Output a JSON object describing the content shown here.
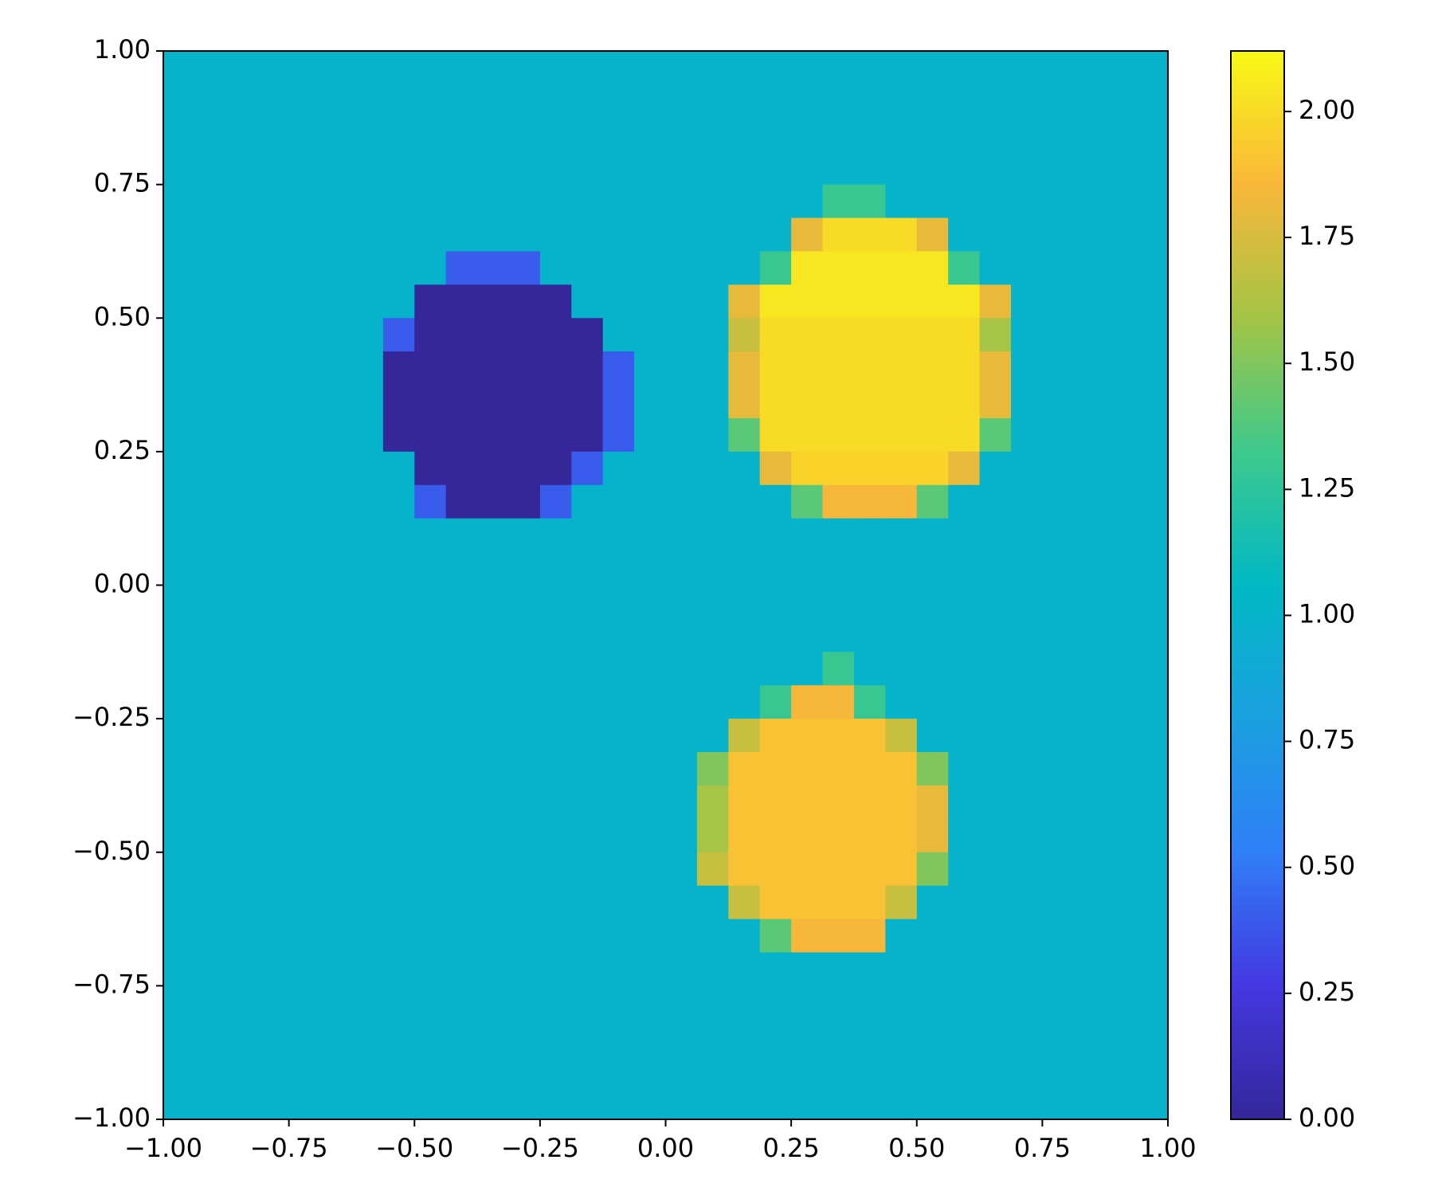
{
  "chart_data": {
    "type": "heatmap",
    "xlim": [
      -1,
      1
    ],
    "ylim": [
      -1,
      1
    ],
    "xticks": [
      {
        "value": -1,
        "label": "−1.00"
      },
      {
        "value": -0.75,
        "label": "−0.75"
      },
      {
        "value": -0.5,
        "label": "−0.50"
      },
      {
        "value": -0.25,
        "label": "−0.25"
      },
      {
        "value": 0,
        "label": "0.00"
      },
      0.25,
      {
        "value": 0.5,
        "label": "0.50"
      },
      0.75,
      {
        "value": 1,
        "label": "1.00"
      }
    ],
    "yticks": [
      {
        "value": -1,
        "label": "−1.00"
      },
      {
        "value": -0.75,
        "label": "−0.75"
      },
      {
        "value": -0.5,
        "label": "−0.50"
      },
      {
        "value": -0.25,
        "label": "−0.25"
      },
      {
        "value": 0,
        "label": "0.00"
      },
      0.25,
      {
        "value": 0.5,
        "label": "0.50"
      },
      0.75,
      {
        "value": 1,
        "label": "1.00"
      }
    ],
    "zlim": [
      0,
      2.12
    ],
    "zticks": [
      {
        "value": 0,
        "label": "0.00"
      },
      0.25,
      {
        "value": 0.5,
        "label": "0.50"
      },
      0.75,
      {
        "value": 1,
        "label": "1.00"
      },
      1.25,
      {
        "value": 1.5,
        "label": "1.50"
      },
      1.75,
      {
        "value": 2,
        "label": "2.00"
      }
    ],
    "colormap": [
      "#35269a",
      "#4438e0",
      "#2f7ff7",
      "#1ba0e0",
      "#00b8c4",
      "#3ec98c",
      "#a3c445",
      "#f9b73a",
      "#f8f816"
    ],
    "values": [
      [
        1,
        1,
        1,
        1,
        1,
        1,
        1,
        1,
        1,
        1,
        1,
        1,
        1,
        1,
        1,
        1,
        1,
        1,
        1,
        1,
        1,
        1,
        1,
        1,
        1,
        1,
        1,
        1,
        1,
        1,
        1,
        1
      ],
      [
        1,
        1,
        1,
        1,
        1,
        1,
        1,
        1,
        1,
        1,
        1,
        1,
        1,
        1,
        1,
        1,
        1,
        1,
        1,
        1,
        1,
        1,
        1,
        1,
        1,
        1,
        1,
        1,
        1,
        1,
        1,
        1
      ],
      [
        1,
        1,
        1,
        1,
        1,
        1,
        1,
        1,
        1,
        1,
        1,
        1,
        1,
        1,
        1,
        1,
        1,
        1,
        1,
        1,
        1,
        1,
        1,
        1,
        1,
        1,
        1,
        1,
        1,
        1,
        1,
        1
      ],
      [
        1,
        1,
        1,
        1,
        1,
        1,
        1,
        1,
        1,
        1,
        1,
        1,
        1,
        1,
        1,
        1,
        1,
        1,
        1,
        1,
        1,
        1,
        1,
        1,
        1,
        1,
        1,
        1,
        1,
        1,
        1,
        1
      ],
      [
        1,
        1,
        1,
        1,
        1,
        1,
        1,
        1,
        1,
        1,
        1,
        1,
        1,
        1,
        1,
        1,
        1,
        1,
        1,
        1,
        1,
        1.3,
        1.3,
        1,
        1,
        1,
        1,
        1,
        1,
        1,
        1,
        1
      ],
      [
        1,
        1,
        1,
        1,
        1,
        1,
        1,
        1,
        1,
        1,
        1,
        1,
        1,
        1,
        1,
        1,
        1,
        1,
        1,
        1,
        1.8,
        2,
        2,
        2,
        1.8,
        1,
        1,
        1,
        1,
        1,
        1,
        1
      ],
      [
        1,
        1,
        1,
        1,
        1,
        1,
        1,
        1,
        1,
        0.4,
        0.4,
        0.4,
        1,
        1,
        1,
        1,
        1,
        1,
        1,
        1.3,
        2.05,
        2.05,
        2.05,
        2.05,
        2.05,
        1.3,
        1,
        1,
        1,
        1,
        1,
        1
      ],
      [
        1,
        1,
        1,
        1,
        1,
        1,
        1,
        1,
        0,
        0,
        0,
        0,
        0,
        1,
        1,
        1,
        1,
        1,
        1.8,
        2.05,
        2.05,
        2.05,
        2.05,
        2.05,
        2.05,
        2.05,
        1.8,
        1,
        1,
        1,
        1,
        1
      ],
      [
        1,
        1,
        1,
        1,
        1,
        1,
        1,
        0.4,
        0,
        0,
        0,
        0,
        0,
        0,
        1,
        1,
        1,
        1,
        1.7,
        2,
        2,
        2,
        2,
        2,
        2,
        2,
        1.6,
        1,
        1,
        1,
        1,
        1
      ],
      [
        1,
        1,
        1,
        1,
        1,
        1,
        1,
        0,
        0,
        0,
        0,
        0,
        0,
        0,
        0.4,
        1,
        1,
        1,
        1.8,
        2,
        2,
        2,
        2,
        2,
        2,
        2,
        1.8,
        1,
        1,
        1,
        1,
        1
      ],
      [
        1,
        1,
        1,
        1,
        1,
        1,
        1,
        0,
        0,
        0,
        0,
        0,
        0,
        0,
        0.4,
        1,
        1,
        1,
        1.8,
        2,
        2,
        2,
        2,
        2,
        2,
        2,
        1.8,
        1,
        1,
        1,
        1,
        1
      ],
      [
        1,
        1,
        1,
        1,
        1,
        1,
        1,
        0,
        0,
        0,
        0,
        0,
        0,
        0,
        0.4,
        1,
        1,
        1,
        1.4,
        2,
        2,
        2,
        2,
        2,
        2,
        2,
        1.4,
        1,
        1,
        1,
        1,
        1
      ],
      [
        1,
        1,
        1,
        1,
        1,
        1,
        1,
        1,
        0,
        0,
        0,
        0,
        0,
        0.4,
        1,
        1,
        1,
        1,
        1,
        1.8,
        1.97,
        1.97,
        1.97,
        1.97,
        1.97,
        1.8,
        1,
        1,
        1,
        1,
        1,
        1
      ],
      [
        1,
        1,
        1,
        1,
        1,
        1,
        1,
        1,
        0.4,
        0,
        0,
        0,
        0.4,
        1,
        1,
        1,
        1,
        1,
        1,
        1,
        1.4,
        1.85,
        1.85,
        1.85,
        1.4,
        1,
        1,
        1,
        1,
        1,
        1,
        1
      ],
      [
        1,
        1,
        1,
        1,
        1,
        1,
        1,
        1,
        1,
        1,
        1,
        1,
        1,
        1,
        1,
        1,
        1,
        1,
        1,
        1,
        1,
        1,
        1,
        1,
        1,
        1,
        1,
        1,
        1,
        1,
        1,
        1
      ],
      [
        1,
        1,
        1,
        1,
        1,
        1,
        1,
        1,
        1,
        1,
        1,
        1,
        1,
        1,
        1,
        1,
        1,
        1,
        1,
        1,
        1,
        1,
        1,
        1,
        1,
        1,
        1,
        1,
        1,
        1,
        1,
        1
      ],
      [
        1,
        1,
        1,
        1,
        1,
        1,
        1,
        1,
        1,
        1,
        1,
        1,
        1,
        1,
        1,
        1,
        1,
        1,
        1,
        1,
        1,
        1,
        1,
        1,
        1,
        1,
        1,
        1,
        1,
        1,
        1,
        1
      ],
      [
        1,
        1,
        1,
        1,
        1,
        1,
        1,
        1,
        1,
        1,
        1,
        1,
        1,
        1,
        1,
        1,
        1,
        1,
        1,
        1,
        1,
        1,
        1,
        1,
        1,
        1,
        1,
        1,
        1,
        1,
        1,
        1
      ],
      [
        1,
        1,
        1,
        1,
        1,
        1,
        1,
        1,
        1,
        1,
        1,
        1,
        1,
        1,
        1,
        1,
        1,
        1,
        1,
        1,
        1,
        1.3,
        1,
        1,
        1,
        1,
        1,
        1,
        1,
        1,
        1,
        1
      ],
      [
        1,
        1,
        1,
        1,
        1,
        1,
        1,
        1,
        1,
        1,
        1,
        1,
        1,
        1,
        1,
        1,
        1,
        1,
        1,
        1.3,
        1.85,
        1.85,
        1.3,
        1,
        1,
        1,
        1,
        1,
        1,
        1,
        1,
        1
      ],
      [
        1,
        1,
        1,
        1,
        1,
        1,
        1,
        1,
        1,
        1,
        1,
        1,
        1,
        1,
        1,
        1,
        1,
        1,
        1.7,
        1.9,
        1.9,
        1.9,
        1.9,
        1.7,
        1,
        1,
        1,
        1,
        1,
        1,
        1,
        1
      ],
      [
        1,
        1,
        1,
        1,
        1,
        1,
        1,
        1,
        1,
        1,
        1,
        1,
        1,
        1,
        1,
        1,
        1,
        1.5,
        1.9,
        1.9,
        1.9,
        1.9,
        1.9,
        1.9,
        1.5,
        1,
        1,
        1,
        1,
        1,
        1,
        1
      ],
      [
        1,
        1,
        1,
        1,
        1,
        1,
        1,
        1,
        1,
        1,
        1,
        1,
        1,
        1,
        1,
        1,
        1,
        1.6,
        1.9,
        1.9,
        1.9,
        1.9,
        1.9,
        1.9,
        1.8,
        1,
        1,
        1,
        1,
        1,
        1,
        1
      ],
      [
        1,
        1,
        1,
        1,
        1,
        1,
        1,
        1,
        1,
        1,
        1,
        1,
        1,
        1,
        1,
        1,
        1,
        1.6,
        1.9,
        1.9,
        1.9,
        1.9,
        1.9,
        1.9,
        1.8,
        1,
        1,
        1,
        1,
        1,
        1,
        1
      ],
      [
        1,
        1,
        1,
        1,
        1,
        1,
        1,
        1,
        1,
        1,
        1,
        1,
        1,
        1,
        1,
        1,
        1,
        1.7,
        1.9,
        1.9,
        1.9,
        1.9,
        1.9,
        1.9,
        1.5,
        1,
        1,
        1,
        1,
        1,
        1,
        1
      ],
      [
        1,
        1,
        1,
        1,
        1,
        1,
        1,
        1,
        1,
        1,
        1,
        1,
        1,
        1,
        1,
        1,
        1,
        1,
        1.7,
        1.9,
        1.9,
        1.9,
        1.9,
        1.7,
        1,
        1,
        1,
        1,
        1,
        1,
        1,
        1
      ],
      [
        1,
        1,
        1,
        1,
        1,
        1,
        1,
        1,
        1,
        1,
        1,
        1,
        1,
        1,
        1,
        1,
        1,
        1,
        1,
        1.4,
        1.85,
        1.85,
        1.85,
        1,
        1,
        1,
        1,
        1,
        1,
        1,
        1,
        1
      ],
      [
        1,
        1,
        1,
        1,
        1,
        1,
        1,
        1,
        1,
        1,
        1,
        1,
        1,
        1,
        1,
        1,
        1,
        1,
        1,
        1,
        1,
        1,
        1,
        1,
        1,
        1,
        1,
        1,
        1,
        1,
        1,
        1
      ],
      [
        1,
        1,
        1,
        1,
        1,
        1,
        1,
        1,
        1,
        1,
        1,
        1,
        1,
        1,
        1,
        1,
        1,
        1,
        1,
        1,
        1,
        1,
        1,
        1,
        1,
        1,
        1,
        1,
        1,
        1,
        1,
        1
      ],
      [
        1,
        1,
        1,
        1,
        1,
        1,
        1,
        1,
        1,
        1,
        1,
        1,
        1,
        1,
        1,
        1,
        1,
        1,
        1,
        1,
        1,
        1,
        1,
        1,
        1,
        1,
        1,
        1,
        1,
        1,
        1,
        1
      ],
      [
        1,
        1,
        1,
        1,
        1,
        1,
        1,
        1,
        1,
        1,
        1,
        1,
        1,
        1,
        1,
        1,
        1,
        1,
        1,
        1,
        1,
        1,
        1,
        1,
        1,
        1,
        1,
        1,
        1,
        1,
        1,
        1
      ],
      [
        1,
        1,
        1,
        1,
        1,
        1,
        1,
        1,
        1,
        1,
        1,
        1,
        1,
        1,
        1,
        1,
        1,
        1,
        1,
        1,
        1,
        1,
        1,
        1,
        1,
        1,
        1,
        1,
        1,
        1,
        1,
        1
      ]
    ]
  }
}
